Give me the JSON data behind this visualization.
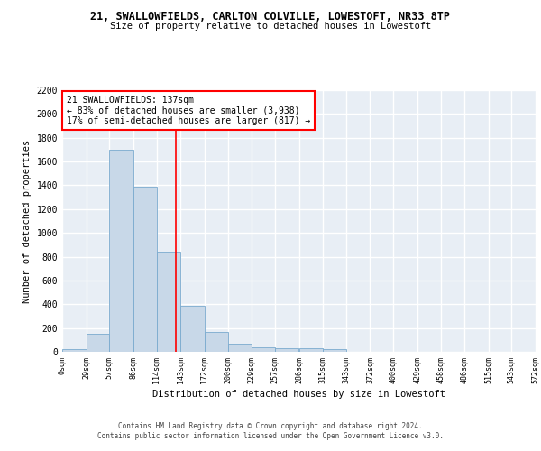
{
  "title_line1": "21, SWALLOWFIELDS, CARLTON COLVILLE, LOWESTOFT, NR33 8TP",
  "title_line2": "Size of property relative to detached houses in Lowestoft",
  "xlabel": "Distribution of detached houses by size in Lowestoft",
  "ylabel": "Number of detached properties",
  "bin_edges": [
    0,
    29,
    57,
    86,
    114,
    143,
    172,
    200,
    229,
    257,
    286,
    315,
    343,
    372,
    400,
    429,
    458,
    486,
    515,
    543,
    572
  ],
  "bar_heights": [
    20,
    155,
    1700,
    1390,
    840,
    385,
    165,
    65,
    35,
    30,
    30,
    20,
    0,
    0,
    0,
    0,
    0,
    0,
    0,
    0
  ],
  "bar_color": "#c8d8e8",
  "bar_edge_color": "#7aaace",
  "property_size": 137,
  "annotation_text": "21 SWALLOWFIELDS: 137sqm\n← 83% of detached houses are smaller (3,938)\n17% of semi-detached houses are larger (817) →",
  "annotation_box_color": "white",
  "annotation_box_edge_color": "red",
  "vline_color": "red",
  "vline_x": 137,
  "ylim": [
    0,
    2200
  ],
  "yticks": [
    0,
    200,
    400,
    600,
    800,
    1000,
    1200,
    1400,
    1600,
    1800,
    2000,
    2200
  ],
  "background_color": "#e8eef5",
  "grid_color": "white",
  "footer_line1": "Contains HM Land Registry data © Crown copyright and database right 2024.",
  "footer_line2": "Contains public sector information licensed under the Open Government Licence v3.0."
}
